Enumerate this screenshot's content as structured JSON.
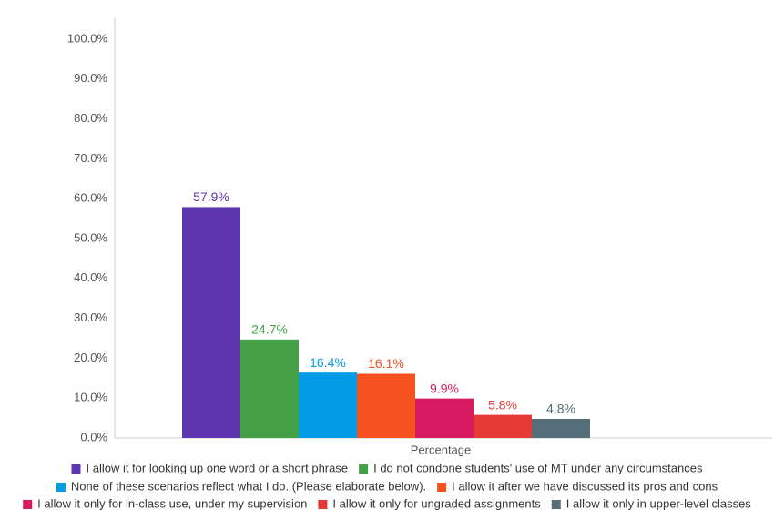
{
  "chart_data": {
    "type": "bar",
    "categories": [
      "Percentage"
    ],
    "series": [
      {
        "name": "I allow it for looking up one word or a short phrase",
        "color": "#5e35b1",
        "values": [
          57.9
        ],
        "value_labels": [
          "57.9%"
        ]
      },
      {
        "name": "I do not condone students' use of MT under any circumstances",
        "color": "#43a047",
        "values": [
          24.7
        ],
        "value_labels": [
          "24.7%"
        ]
      },
      {
        "name": "None of these scenarios reflect what I do. (Please elaborate below).",
        "color": "#039be5",
        "values": [
          16.4
        ],
        "value_labels": [
          "16.4%"
        ]
      },
      {
        "name": "I allow it after we have discussed its pros and cons",
        "color": "#f4511e",
        "values": [
          16.1
        ],
        "value_labels": [
          "16.1%"
        ]
      },
      {
        "name": "I allow it only for in-class use, under my supervision",
        "color": "#d81b60",
        "values": [
          9.9
        ],
        "value_labels": [
          "9.9%"
        ]
      },
      {
        "name": "I allow it only for ungraded assignments",
        "color": "#e53935",
        "values": [
          5.8
        ],
        "value_labels": [
          "5.8%"
        ]
      },
      {
        "name": "I allow it only in upper-level classes",
        "color": "#546e7a",
        "values": [
          4.8
        ],
        "value_labels": [
          "4.8%"
        ]
      }
    ],
    "ylim": [
      0,
      100
    ],
    "yticks": [
      {
        "value": 0,
        "label": "0.0%"
      },
      {
        "value": 10,
        "label": "10.0%"
      },
      {
        "value": 20,
        "label": "20.0%"
      },
      {
        "value": 30,
        "label": "30.0%"
      },
      {
        "value": 40,
        "label": "40.0%"
      },
      {
        "value": 50,
        "label": "50.0%"
      },
      {
        "value": 60,
        "label": "60.0%"
      },
      {
        "value": 70,
        "label": "70.0%"
      },
      {
        "value": 80,
        "label": "80.0%"
      },
      {
        "value": 90,
        "label": "90.0%"
      },
      {
        "value": 100,
        "label": "100.0%"
      }
    ],
    "grid": false
  }
}
